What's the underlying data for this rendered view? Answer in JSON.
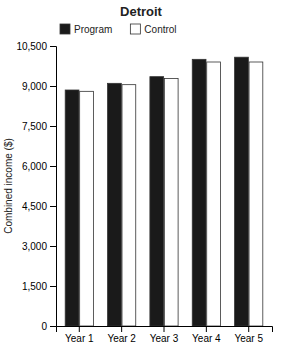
{
  "chart_data": {
    "type": "bar",
    "title": "Detroit",
    "ylabel": "Combined income ($)",
    "categories": [
      "Year 1",
      "Year 2",
      "Year 3",
      "Year 4",
      "Year 5"
    ],
    "series": [
      {
        "name": "Program",
        "color": "#1a1a1a",
        "values": [
          8850,
          9100,
          9350,
          10000,
          10080
        ]
      },
      {
        "name": "Control",
        "color": "#ffffff",
        "values": [
          8800,
          9050,
          9280,
          9900,
          9900
        ]
      }
    ],
    "ylim": [
      0,
      10500
    ],
    "yticks": [
      0,
      {
        "value": 1500,
        "label": "1,500"
      },
      {
        "value": 3000,
        "label": "3,000"
      },
      {
        "value": 4500,
        "label": "4,500"
      },
      {
        "value": 6000,
        "label": "6,000"
      },
      {
        "value": 7500,
        "label": "7,500"
      },
      {
        "value": 9000,
        "label": "9,000"
      },
      {
        "value": 10500,
        "label": "10,500"
      }
    ],
    "grid": false,
    "legend": "upper-left"
  }
}
